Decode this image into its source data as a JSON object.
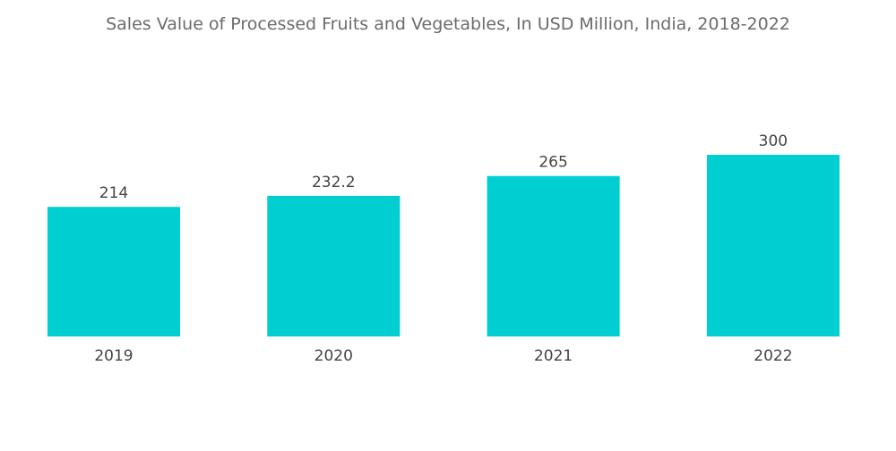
{
  "chart_data": {
    "type": "bar",
    "title": "Sales Value of Processed Fruits and Vegetables, In USD Million, India, 2018-2022",
    "categories": [
      "2019",
      "2020",
      "2021",
      "2022"
    ],
    "values": [
      214,
      232.2,
      265,
      300
    ],
    "value_labels": [
      "214",
      "232.2",
      "265",
      "300"
    ],
    "xlabel": "",
    "ylabel": "",
    "ylim": [
      0,
      300
    ],
    "grid": false,
    "legend": "none",
    "bar_color": "#00CED1"
  }
}
